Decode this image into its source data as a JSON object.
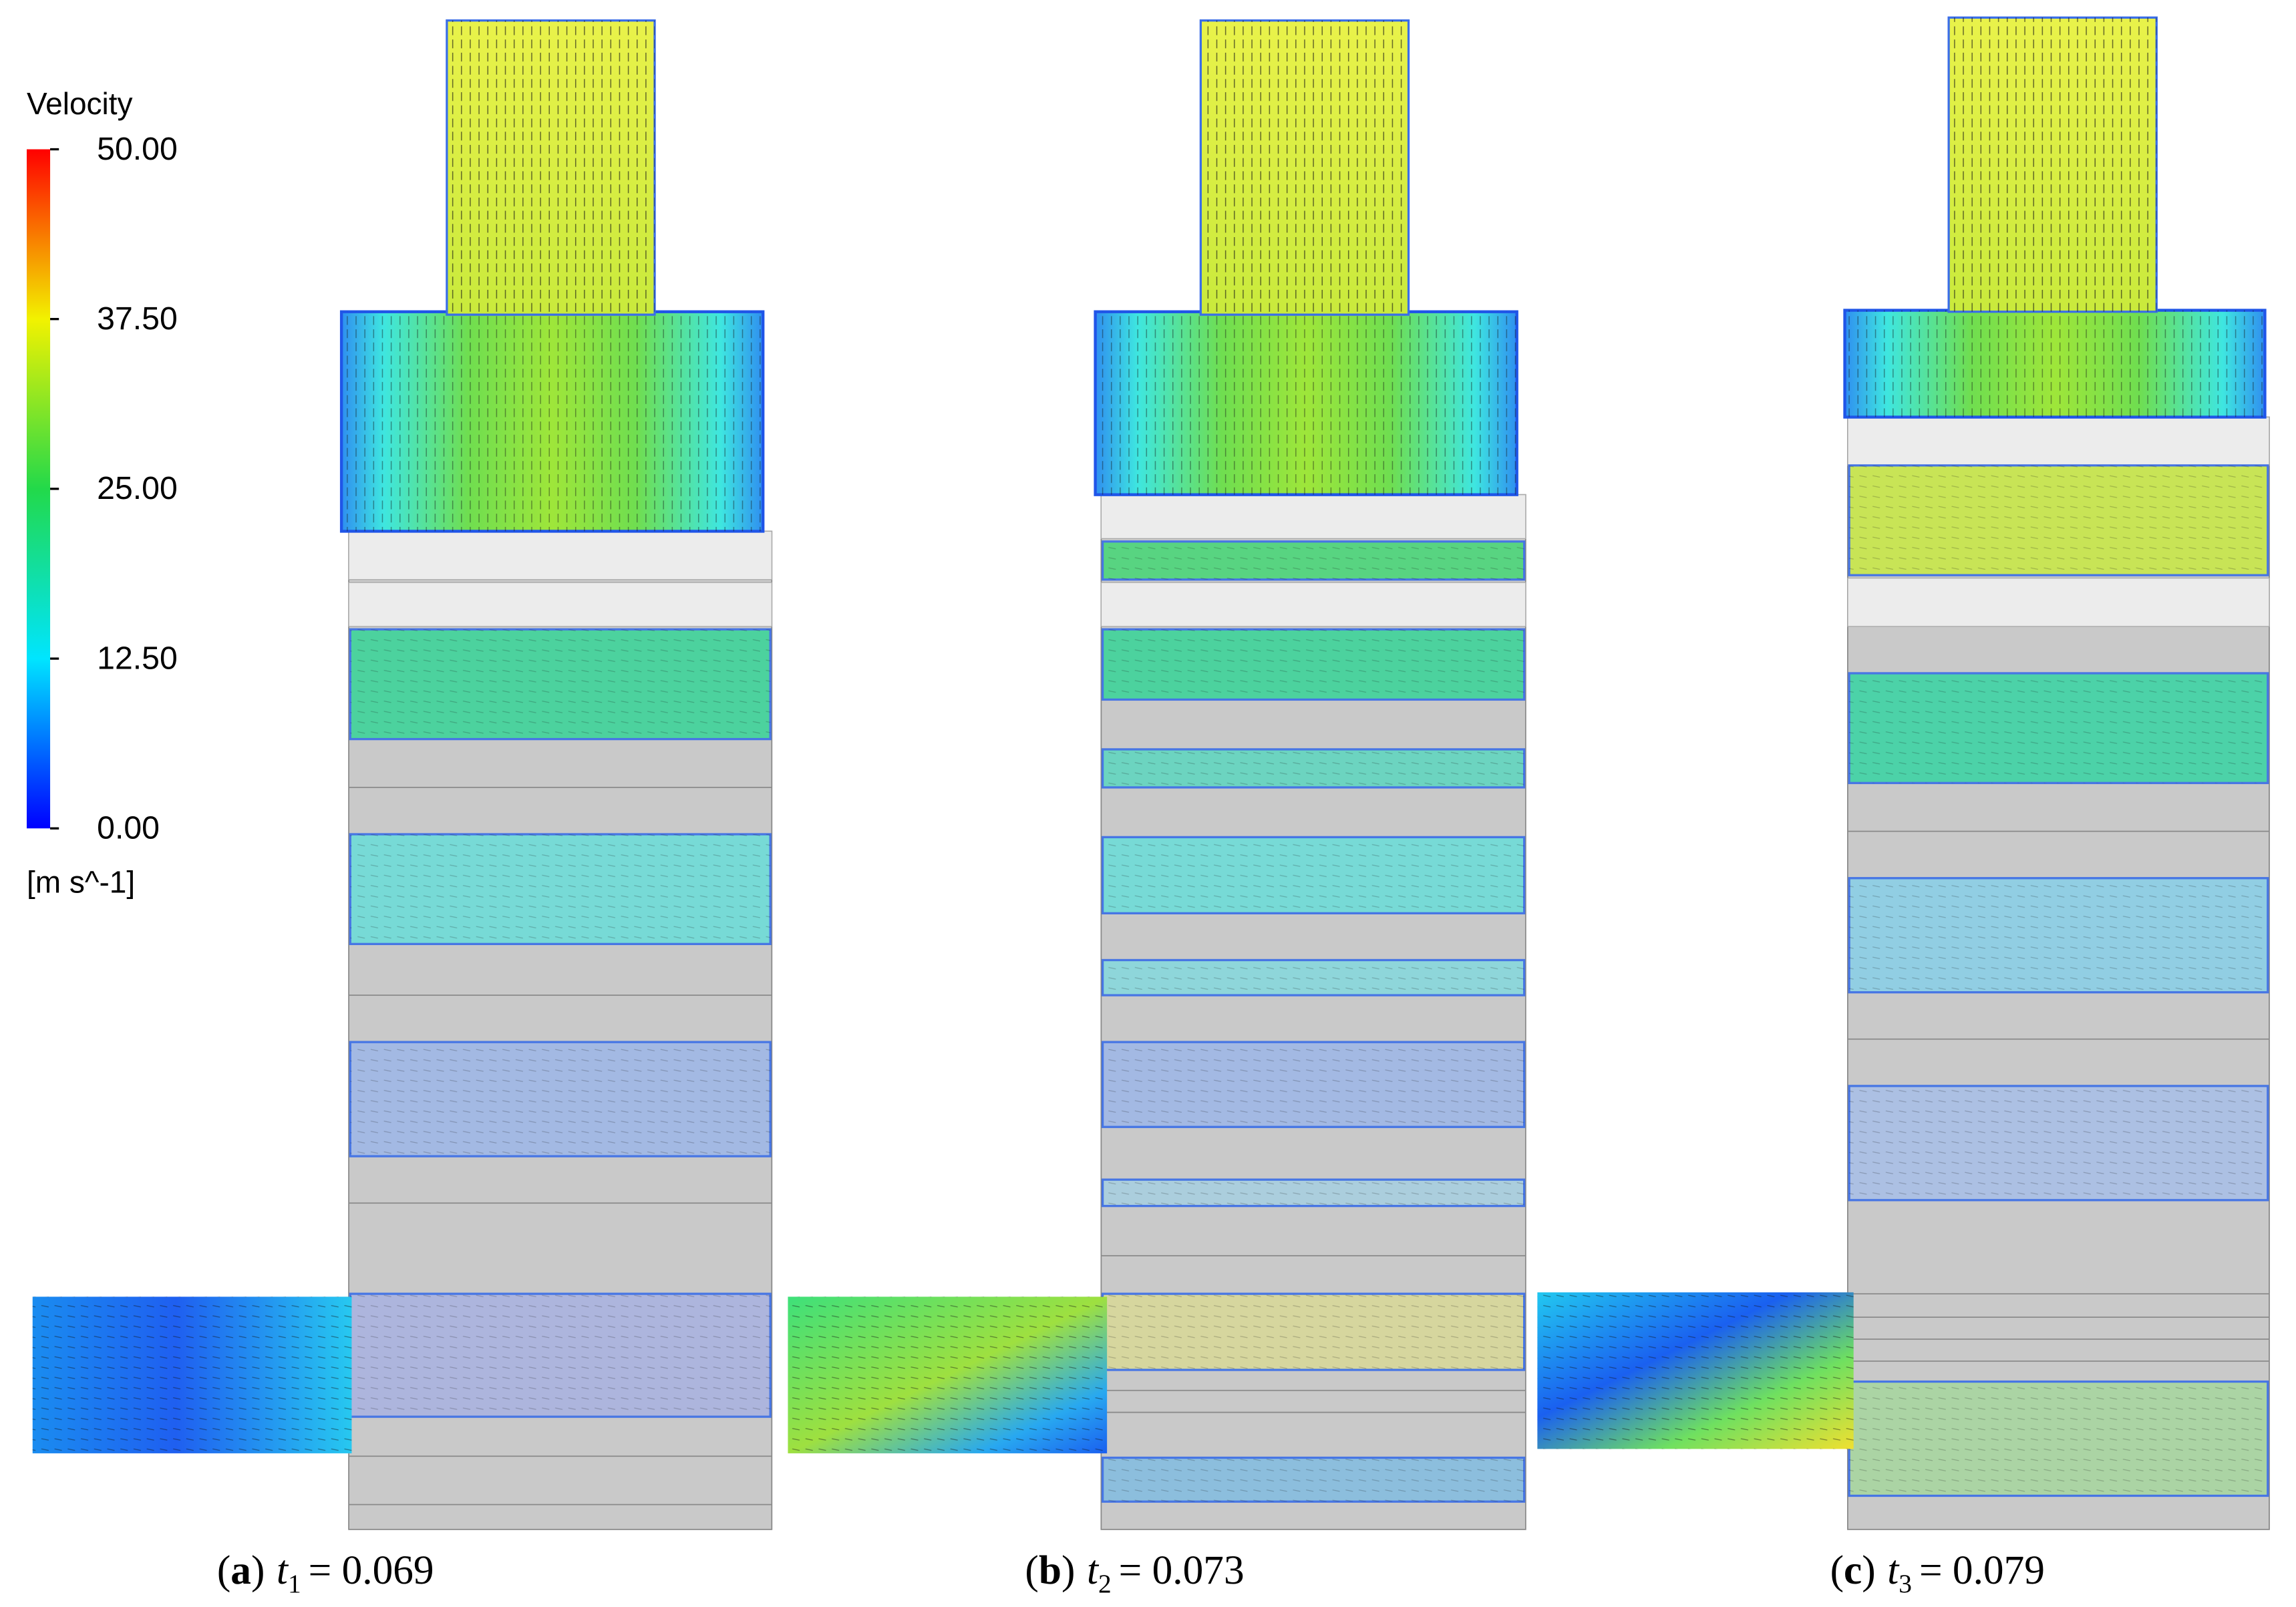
{
  "colorbar": {
    "title": "Velocity",
    "unit": "[m s^-1]",
    "ticks": [
      {
        "value": 50,
        "label": "50.00"
      },
      {
        "value": 37.5,
        "label": "37.50"
      },
      {
        "value": 25,
        "label": "25.00"
      },
      {
        "value": 12.5,
        "label": "12.50"
      },
      {
        "value": 0,
        "label": "0.00"
      }
    ],
    "colors": [
      "#0000ff",
      "#00e5ff",
      "#22d94a",
      "#f2f200",
      "#ff0000"
    ]
  },
  "panels": [
    {
      "open": "(",
      "letter": "a",
      "close": ")",
      "var": "t",
      "sub": "1",
      "eq": "= 0.069"
    },
    {
      "open": "(",
      "letter": "b",
      "close": ")",
      "var": "t",
      "sub": "2",
      "eq": "= 0.073"
    },
    {
      "open": "(",
      "letter": "c",
      "close": ")",
      "var": "t",
      "sub": "3",
      "eq": "= 0.079"
    }
  ]
}
